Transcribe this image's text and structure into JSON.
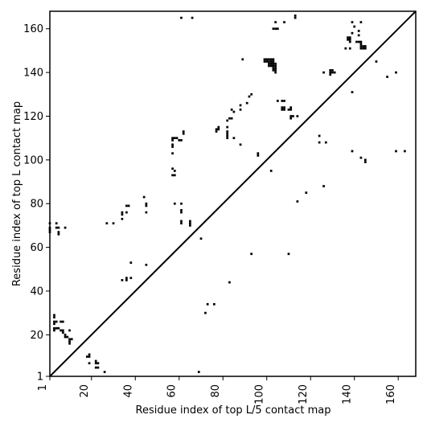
{
  "chart_data": {
    "type": "heatmap",
    "xlabel": "Residue index of top L/5 contact map",
    "ylabel": "Residue index of top L contact map",
    "x_ticks": [
      1,
      20,
      40,
      60,
      80,
      100,
      120,
      140,
      160
    ],
    "y_ticks": [
      1,
      20,
      40,
      60,
      80,
      100,
      120,
      140,
      160
    ],
    "xlim": [
      1,
      168
    ],
    "ylim": [
      1,
      168
    ],
    "diagonal": true,
    "colors": {
      "cell": "#000000",
      "background": "#ffffff",
      "axis": "#000000"
    },
    "upper_contacts": [
      [
        61,
        165
      ],
      [
        66,
        165
      ],
      [
        104,
        163
      ],
      [
        113,
        166
      ],
      [
        113,
        165
      ],
      [
        103,
        160
      ],
      [
        104,
        160
      ],
      [
        105,
        160
      ],
      [
        99,
        146
      ],
      [
        100,
        146
      ],
      [
        101,
        146
      ],
      [
        102,
        146
      ],
      [
        103,
        146
      ],
      [
        99,
        145
      ],
      [
        100,
        145
      ],
      [
        101,
        145
      ],
      [
        102,
        145
      ],
      [
        103,
        145
      ],
      [
        101,
        144
      ],
      [
        102,
        144
      ],
      [
        103,
        144
      ],
      [
        104,
        144
      ],
      [
        101,
        143
      ],
      [
        102,
        143
      ],
      [
        103,
        143
      ],
      [
        104,
        143
      ],
      [
        103,
        142
      ],
      [
        104,
        142
      ],
      [
        103,
        141
      ],
      [
        104,
        141
      ],
      [
        104,
        140
      ],
      [
        89,
        146
      ],
      [
        108,
        163
      ],
      [
        105,
        127
      ],
      [
        107,
        127
      ],
      [
        108,
        127
      ],
      [
        107,
        124
      ],
      [
        108,
        124
      ],
      [
        111,
        124
      ],
      [
        107,
        123
      ],
      [
        108,
        123
      ],
      [
        110,
        123
      ],
      [
        111,
        123
      ],
      [
        111,
        120
      ],
      [
        112,
        120
      ],
      [
        114,
        120
      ],
      [
        111,
        119
      ],
      [
        93,
        130
      ],
      [
        92,
        129
      ],
      [
        91,
        126
      ],
      [
        88,
        125
      ],
      [
        88,
        123
      ],
      [
        84,
        123
      ],
      [
        85,
        122
      ],
      [
        83,
        119
      ],
      [
        84,
        119
      ],
      [
        82,
        118
      ],
      [
        78,
        115
      ],
      [
        82,
        115
      ],
      [
        77,
        114
      ],
      [
        78,
        114
      ],
      [
        77,
        113
      ],
      [
        82,
        113
      ],
      [
        82,
        112
      ],
      [
        82,
        111
      ],
      [
        82,
        110
      ],
      [
        85,
        110
      ],
      [
        88,
        107
      ],
      [
        96,
        103
      ],
      [
        96,
        102
      ],
      [
        102,
        95
      ],
      [
        62,
        113
      ],
      [
        62,
        112
      ],
      [
        57,
        110
      ],
      [
        58,
        110
      ],
      [
        59,
        110
      ],
      [
        57,
        109
      ],
      [
        60,
        109
      ],
      [
        61,
        109
      ],
      [
        57,
        107
      ],
      [
        57,
        106
      ],
      [
        57,
        103
      ],
      [
        57,
        96
      ],
      [
        58,
        95
      ],
      [
        57,
        93
      ],
      [
        58,
        93
      ],
      [
        139,
        163
      ],
      [
        140,
        161
      ],
      [
        142,
        159
      ],
      [
        139,
        158
      ],
      [
        142,
        157
      ],
      [
        143,
        163
      ],
      [
        137,
        156
      ],
      [
        138,
        156
      ],
      [
        137,
        155
      ],
      [
        138,
        155
      ],
      [
        138,
        154
      ],
      [
        141,
        154
      ],
      [
        142,
        154
      ],
      [
        143,
        154
      ],
      [
        143,
        153
      ],
      [
        143,
        152
      ],
      [
        144,
        152
      ],
      [
        145,
        152
      ],
      [
        143,
        151
      ],
      [
        144,
        151
      ],
      [
        145,
        151
      ],
      [
        136,
        151
      ],
      [
        138,
        151
      ],
      [
        129,
        141
      ],
      [
        130,
        141
      ],
      [
        129,
        140
      ],
      [
        130,
        140
      ],
      [
        131,
        140
      ],
      [
        129,
        139
      ],
      [
        126,
        140
      ],
      [
        150,
        145
      ],
      [
        155,
        138
      ],
      [
        159,
        140
      ],
      [
        139,
        131
      ],
      [
        124,
        111
      ],
      [
        124,
        108
      ],
      [
        127,
        108
      ],
      [
        139,
        104
      ],
      [
        143,
        101
      ],
      [
        145,
        100
      ],
      [
        145,
        99
      ],
      [
        159,
        104
      ],
      [
        163,
        104
      ],
      [
        118,
        85
      ],
      [
        126,
        88
      ],
      [
        114,
        81
      ]
    ],
    "lower_contacts": [
      [
        1,
        71
      ],
      [
        1,
        69
      ],
      [
        1,
        68
      ],
      [
        1,
        67
      ],
      [
        4,
        71
      ],
      [
        4,
        69
      ],
      [
        5,
        69
      ],
      [
        5,
        67
      ],
      [
        5,
        66
      ],
      [
        8,
        69
      ],
      [
        27,
        71
      ],
      [
        30,
        71
      ],
      [
        34,
        76
      ],
      [
        34,
        75
      ],
      [
        34,
        73
      ],
      [
        36,
        79
      ],
      [
        37,
        79
      ],
      [
        36,
        76
      ],
      [
        44,
        83
      ],
      [
        45,
        80
      ],
      [
        45,
        79
      ],
      [
        45,
        76
      ],
      [
        58,
        80
      ],
      [
        61,
        80
      ],
      [
        61,
        77
      ],
      [
        61,
        76
      ],
      [
        61,
        72
      ],
      [
        61,
        71
      ],
      [
        65,
        72
      ],
      [
        65,
        71
      ],
      [
        65,
        70
      ],
      [
        70,
        64
      ],
      [
        38,
        53
      ],
      [
        45,
        52
      ],
      [
        34,
        45
      ],
      [
        36,
        45
      ],
      [
        36,
        46
      ],
      [
        38,
        46
      ],
      [
        93,
        57
      ],
      [
        110,
        57
      ],
      [
        83,
        44
      ],
      [
        73,
        34
      ],
      [
        76,
        34
      ],
      [
        72,
        30
      ],
      [
        69,
        3
      ],
      [
        3,
        29
      ],
      [
        3,
        28
      ],
      [
        3,
        26
      ],
      [
        4,
        26
      ],
      [
        3,
        25
      ],
      [
        3,
        23
      ],
      [
        4,
        23
      ],
      [
        5,
        23
      ],
      [
        3,
        22
      ],
      [
        6,
        26
      ],
      [
        7,
        26
      ],
      [
        6,
        22
      ],
      [
        7,
        22
      ],
      [
        7,
        21
      ],
      [
        8,
        20
      ],
      [
        8,
        19
      ],
      [
        9,
        19
      ],
      [
        10,
        18
      ],
      [
        11,
        18
      ],
      [
        10,
        17
      ],
      [
        10,
        16
      ],
      [
        10,
        22
      ],
      [
        18,
        10
      ],
      [
        19,
        10
      ],
      [
        19,
        11
      ],
      [
        22,
        8
      ],
      [
        19,
        7
      ],
      [
        22,
        7
      ],
      [
        23,
        7
      ],
      [
        22,
        5
      ],
      [
        23,
        5
      ],
      [
        26,
        3
      ]
    ]
  }
}
